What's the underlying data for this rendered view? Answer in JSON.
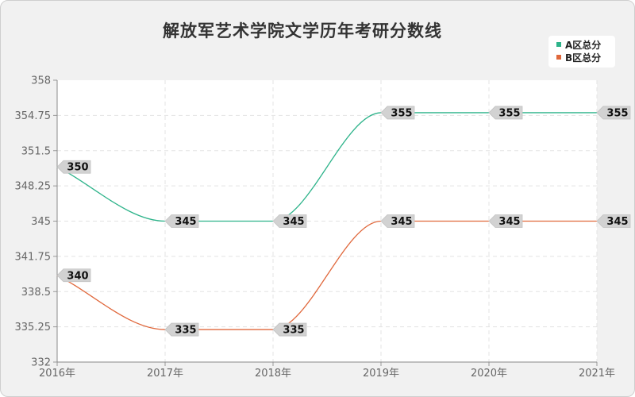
{
  "chart_data": {
    "type": "line",
    "title": "解放军艺术学院文学历年考研分数线",
    "categories": [
      "2016年",
      "2017年",
      "2018年",
      "2019年",
      "2020年",
      "2021年"
    ],
    "y_ticks": [
      "358",
      "354.75",
      "351.5",
      "348.25",
      "345",
      "341.75",
      "338.5",
      "335.25",
      "332"
    ],
    "ylim": [
      332,
      358
    ],
    "grid": true,
    "legend_position": "top-right",
    "series": [
      {
        "name": "A区总分",
        "values": [
          350,
          345,
          345,
          355,
          355,
          355
        ],
        "labels": [
          "350",
          "345",
          "345",
          "355",
          "355",
          "355"
        ],
        "color": "#2db38a"
      },
      {
        "name": "B区总分",
        "values": [
          340,
          335,
          335,
          345,
          345,
          345
        ],
        "labels": [
          "340",
          "335",
          "335",
          "345",
          "345",
          "345"
        ],
        "color": "#e0683c"
      }
    ]
  }
}
